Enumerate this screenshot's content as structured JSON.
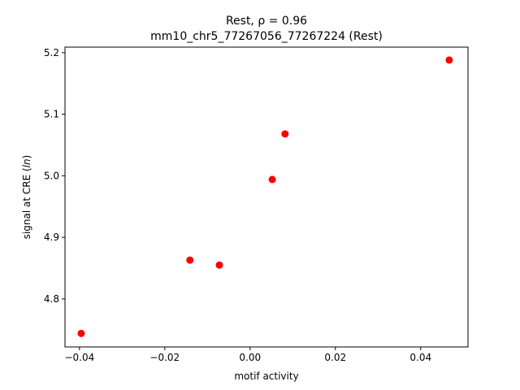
{
  "chart_data": {
    "type": "scatter",
    "title_prefix": "Rest, ",
    "title_rho": "ρ = 0.96",
    "subtitle": "mm10_chr5_77267056_77267224 (Rest)",
    "xlabel": "motif activity",
    "ylabel_prefix": "signal at CRE (",
    "ylabel_italic": "ln",
    "ylabel_suffix": ")",
    "xlim": [
      -0.0434,
      0.0511
    ],
    "ylim": [
      4.722,
      5.209
    ],
    "x_ticks": [
      -0.04,
      -0.02,
      0.0,
      0.02,
      0.04
    ],
    "x_tick_labels": [
      "−0.04",
      "−0.02",
      "0.00",
      "0.02",
      "0.04"
    ],
    "y_ticks": [
      4.8,
      4.9,
      5.0,
      5.1,
      5.2
    ],
    "y_tick_labels": [
      "4.8",
      "4.9",
      "5.0",
      "5.1",
      "5.2"
    ],
    "grid": false,
    "marker_color": "#ff0000",
    "points": [
      {
        "x": -0.0396,
        "y": 4.744
      },
      {
        "x": -0.0141,
        "y": 4.863
      },
      {
        "x": -0.0072,
        "y": 4.855
      },
      {
        "x": 0.0052,
        "y": 4.994
      },
      {
        "x": 0.0082,
        "y": 5.068
      },
      {
        "x": 0.0467,
        "y": 5.188
      }
    ]
  }
}
